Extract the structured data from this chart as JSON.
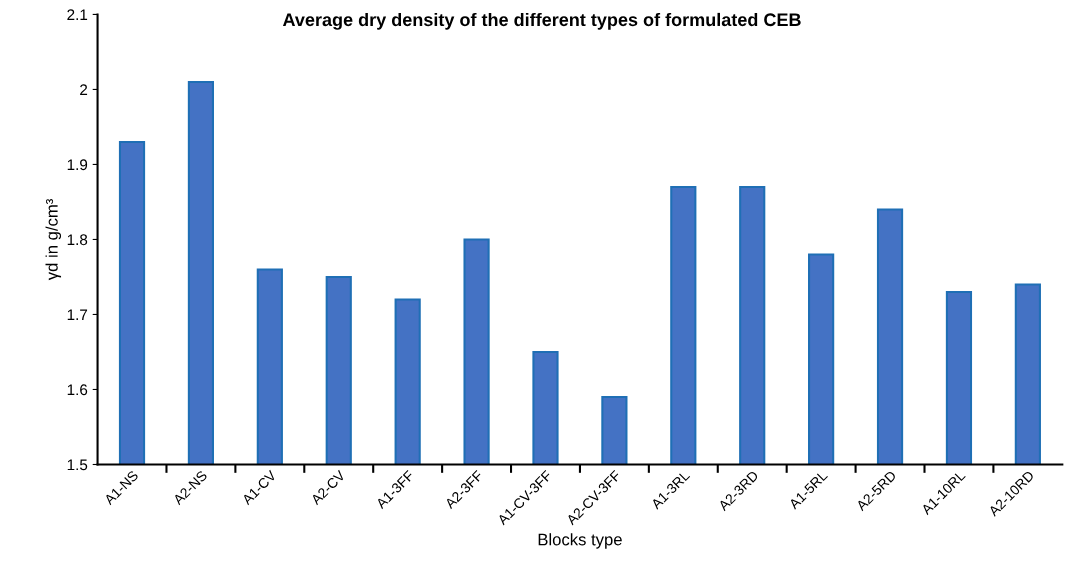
{
  "chart_data": {
    "type": "bar",
    "title": "Average dry density of the different types of formulated CEB",
    "xlabel": "Blocks type",
    "ylabel": "γd in g/cm³",
    "categories": [
      "A1-NS",
      "A2-NS",
      "A1-CV",
      "A2-CV",
      "A1-3FF",
      "A2-3FF",
      "A1-CV-3FF",
      "A2-CV-3FF",
      "A1-3RL",
      "A2-3RD",
      "A1-5RL",
      "A2-5RD",
      "A1-10RL",
      "A2-10RD"
    ],
    "values": [
      1.93,
      2.01,
      1.76,
      1.75,
      1.72,
      1.8,
      1.65,
      1.59,
      1.87,
      1.87,
      1.78,
      1.84,
      1.73,
      1.74
    ],
    "color": "#4472c4",
    "ylim": [
      1.5,
      2.1
    ],
    "yticks": [
      1.5,
      1.6,
      1.7,
      1.8,
      1.9,
      2,
      2.1
    ],
    "grid": false
  }
}
